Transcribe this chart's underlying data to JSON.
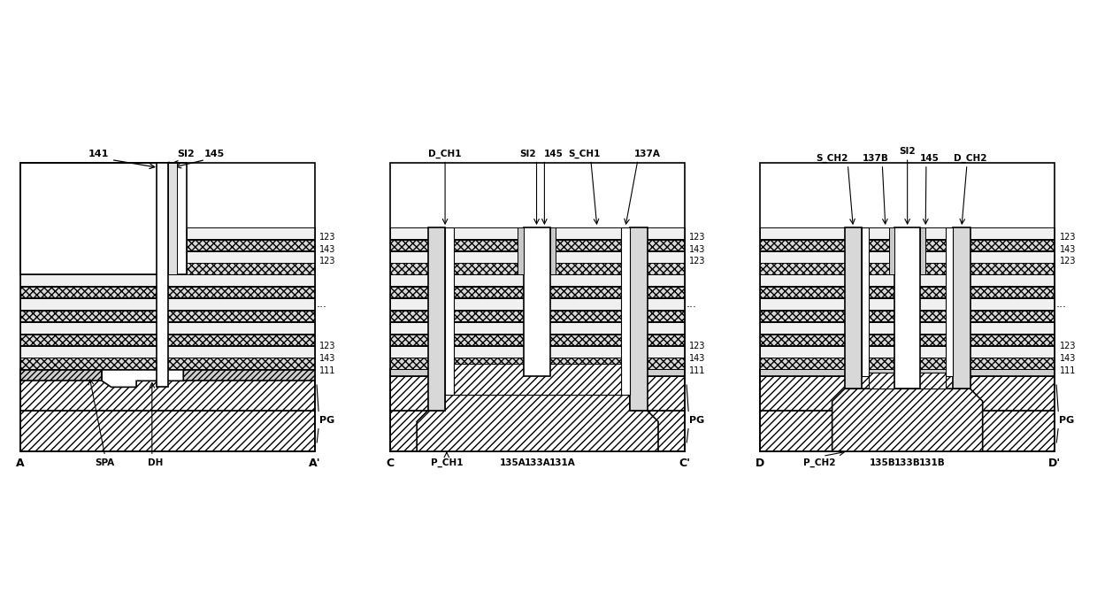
{
  "bg_color": "#ffffff",
  "line_color": "#000000",
  "panel1": {
    "label_A": "A",
    "label_Ap": "A'",
    "label_141": "141",
    "label_SI2": "SI2",
    "label_145": "145",
    "label_SPA": "SPA",
    "label_DH": "DH",
    "label_123": "123",
    "label_143": "143",
    "label_111": "111",
    "label_PG": "PG"
  },
  "panel2": {
    "label_C": "C",
    "label_Cp": "C'",
    "label_D_CH1": "D_CH1",
    "label_SI2": "SI2",
    "label_145": "145",
    "label_S_CH1": "S_CH1",
    "label_137A": "137A",
    "label_P_CH1": "P_CH1",
    "label_135A": "135A",
    "label_133A": "133A",
    "label_131A": "131A",
    "label_123": "123",
    "label_143": "143",
    "label_111": "111",
    "label_PG": "PG"
  },
  "panel3": {
    "label_D": "D",
    "label_Dp": "D'",
    "label_SI2": "SI2",
    "label_137B": "137B",
    "label_145": "145",
    "label_S_CH2": "S_CH2",
    "label_D_CH2": "D_CH2",
    "label_P_CH2": "P_CH2",
    "label_135B": "135B",
    "label_133B": "133B",
    "label_131B": "131B",
    "label_123": "123",
    "label_143": "143",
    "label_111": "111",
    "label_PG": "PG"
  }
}
